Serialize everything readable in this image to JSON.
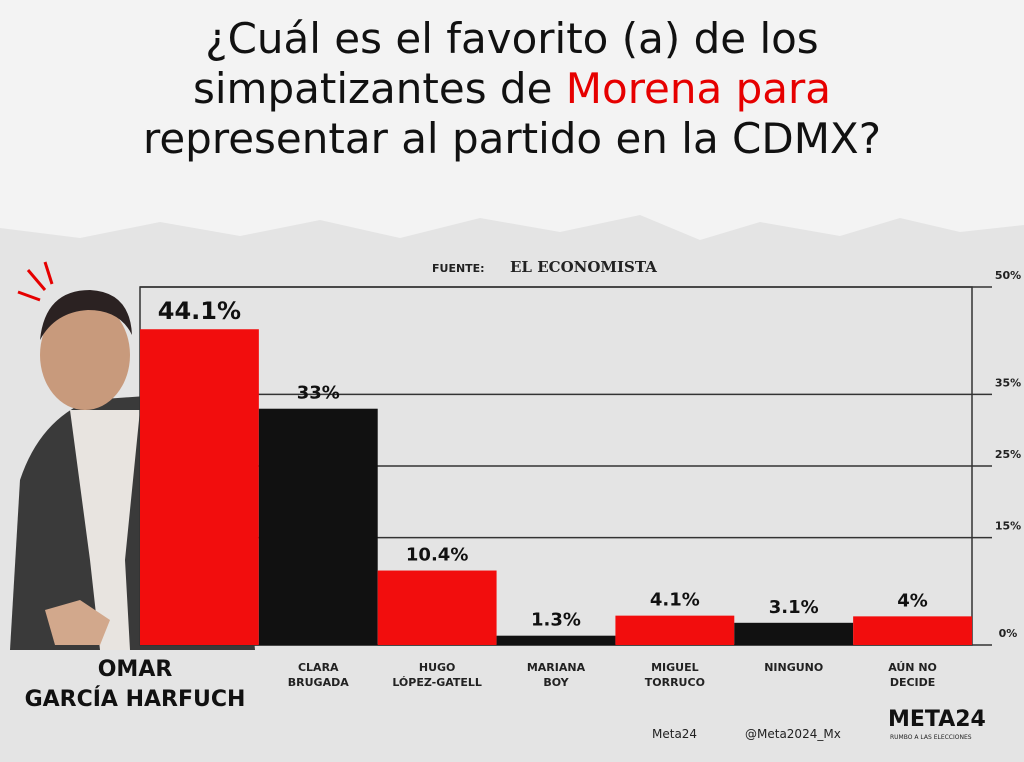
{
  "chart_data": {
    "type": "bar",
    "title": [
      "¿Cuál es el favorito (a) de los simpatizantes de ",
      "Morena para",
      " representar al partido en la CDMX?"
    ],
    "source_label": "FUENTE:",
    "source": "EL ECONOMISTA",
    "categories": [
      "OMAR\nGARCÍA HARFUCH",
      "CLARA\nBRUGADA",
      "HUGO\nLÓPEZ-GATELL",
      "MARIANA\nBOY",
      "MIGUEL\nTORRUCO",
      "NINGUNO",
      "AÚN NO\nDECIDE"
    ],
    "values": [
      44.1,
      33,
      10.4,
      1.3,
      4.1,
      3.1,
      4
    ],
    "value_labels": [
      "44.1%",
      "33%",
      "10.4%",
      "1.3%",
      "4.1%",
      "3.1%",
      "4%"
    ],
    "colors": [
      "#f20d0d",
      "#111111",
      "#f20d0d",
      "#111111",
      "#f20d0d",
      "#111111",
      "#f20d0d"
    ],
    "ylim": [
      0,
      50
    ],
    "yticks": [
      {
        "value": 0,
        "label": "0%"
      },
      {
        "value": 15,
        "label": "15%"
      },
      {
        "value": 25,
        "label": "25%"
      },
      {
        "value": 35,
        "label": "35%"
      },
      {
        "value": 50,
        "label": "50%"
      }
    ],
    "grid": true,
    "footer": {
      "facebook": "Meta24",
      "twitter": "@Meta2024_Mx",
      "logo": "META24",
      "logo_sub": "RUMBO A LAS ELECCIONES"
    }
  }
}
